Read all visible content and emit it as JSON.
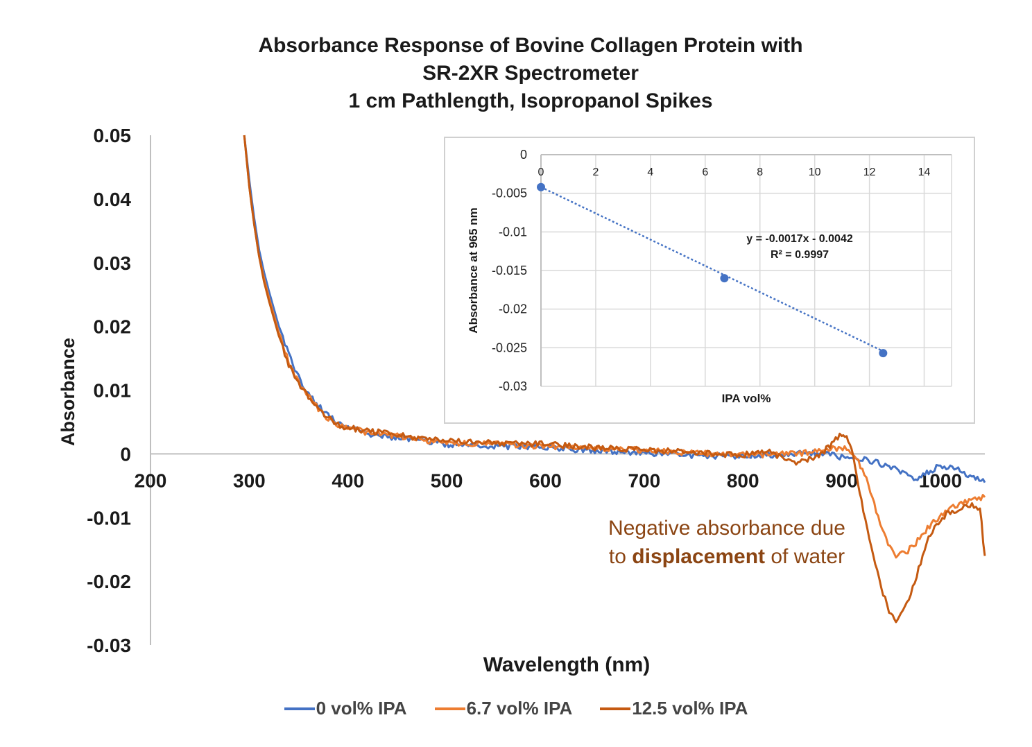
{
  "chart_data": [
    {
      "type": "line",
      "title_lines": [
        "Absorbance Response of Bovine Collagen Protein with",
        "SR-2XR Spectrometer",
        "1 cm Pathlength, Isopropanol Spikes"
      ],
      "xlabel": "Wavelength (nm)",
      "ylabel": "Absorbance",
      "xlim": [
        200,
        1045
      ],
      "ylim": [
        -0.03,
        0.05
      ],
      "xticks": [
        "200",
        "300",
        "400",
        "500",
        "600",
        "700",
        "800",
        "900",
        "1000"
      ],
      "yticks": [
        "0.05",
        "0.04",
        "0.03",
        "0.02",
        "0.01",
        "0",
        "-0.01",
        "-0.02",
        "-0.03"
      ],
      "grid": false,
      "legend_position": "bottom",
      "series": [
        {
          "name": "0 vol% IPA",
          "color": "#4472c4",
          "x": [
            295,
            300,
            305,
            310,
            315,
            320,
            330,
            340,
            350,
            360,
            370,
            380,
            390,
            400,
            425,
            450,
            475,
            500,
            550,
            600,
            650,
            700,
            750,
            800,
            850,
            875,
            900,
            925,
            950,
            975,
            990,
            1000,
            1010,
            1020,
            1030,
            1045
          ],
          "y": [
            0.05,
            0.043,
            0.037,
            0.032,
            0.0285,
            0.0255,
            0.02,
            0.0155,
            0.012,
            0.0095,
            0.0075,
            0.006,
            0.0048,
            0.0042,
            0.003,
            0.0025,
            0.002,
            0.0015,
            0.0012,
            0.001,
            0.0005,
            0.0002,
            -0.0003,
            -0.0004,
            0.0,
            0.0002,
            -0.0005,
            -0.0008,
            -0.0022,
            -0.0038,
            -0.0028,
            -0.0018,
            -0.0022,
            -0.0025,
            -0.0035,
            -0.0045
          ]
        },
        {
          "name": "6.7 vol% IPA",
          "color": "#ed7d31",
          "x": [
            295,
            300,
            305,
            310,
            315,
            320,
            330,
            340,
            350,
            360,
            370,
            380,
            390,
            400,
            425,
            450,
            475,
            500,
            550,
            600,
            650,
            700,
            750,
            800,
            850,
            875,
            895,
            905,
            915,
            925,
            935,
            945,
            955,
            965,
            975,
            985,
            995,
            1005,
            1015,
            1025,
            1035,
            1045
          ],
          "y": [
            0.05,
            0.042,
            0.036,
            0.031,
            0.0275,
            0.0245,
            0.019,
            0.0145,
            0.0112,
            0.009,
            0.007,
            0.0055,
            0.0045,
            0.004,
            0.0032,
            0.0028,
            0.0022,
            0.0018,
            0.0015,
            0.0012,
            0.0009,
            0.0006,
            0.0001,
            -0.0002,
            0.0,
            0.0003,
            0.0009,
            0.001,
            -0.0005,
            -0.004,
            -0.009,
            -0.0135,
            -0.016,
            -0.0155,
            -0.014,
            -0.012,
            -0.0105,
            -0.0092,
            -0.0082,
            -0.0075,
            -0.007,
            -0.0068
          ]
        },
        {
          "name": "12.5 vol% IPA",
          "color": "#c55a11",
          "x": [
            295,
            300,
            305,
            310,
            315,
            320,
            330,
            340,
            350,
            360,
            370,
            380,
            390,
            400,
            425,
            450,
            475,
            500,
            550,
            600,
            650,
            700,
            750,
            800,
            825,
            850,
            875,
            890,
            900,
            905,
            910,
            915,
            920,
            930,
            940,
            950,
            955,
            960,
            970,
            980,
            990,
            1000,
            1010,
            1020,
            1030,
            1040,
            1045
          ],
          "y": [
            0.05,
            0.042,
            0.036,
            0.031,
            0.027,
            0.024,
            0.0185,
            0.014,
            0.011,
            0.0088,
            0.007,
            0.0056,
            0.0046,
            0.0041,
            0.0035,
            0.003,
            0.0024,
            0.0021,
            0.0017,
            0.0015,
            0.001,
            0.0006,
            0.0002,
            -0.0002,
            0.0006,
            -0.0015,
            -0.0005,
            0.0015,
            0.0032,
            0.003,
            0.0005,
            -0.003,
            -0.0075,
            -0.015,
            -0.021,
            -0.0255,
            -0.026,
            -0.025,
            -0.022,
            -0.017,
            -0.0125,
            -0.0102,
            -0.0092,
            -0.0085,
            -0.008,
            -0.0085,
            -0.016
          ]
        }
      ],
      "annotation": {
        "prefix": "Negative absorbance due",
        "line2_pre": "to ",
        "line2_bold": "displacement",
        "line2_post": " of water",
        "color": "#8b4513"
      }
    },
    {
      "type": "scatter",
      "xlabel": "IPA vol%",
      "ylabel": "Absorbance at 965 nm",
      "xlim": [
        0,
        15
      ],
      "ylim": [
        -0.03,
        0
      ],
      "xticks": [
        "0",
        "2",
        "4",
        "6",
        "8",
        "10",
        "12",
        "14"
      ],
      "yticks": [
        "0",
        "-0.005",
        "-0.01",
        "-0.015",
        "-0.02",
        "-0.025",
        "-0.03"
      ],
      "grid": true,
      "points": {
        "x": [
          0,
          6.7,
          12.5
        ],
        "y": [
          -0.0042,
          -0.016,
          -0.0257
        ],
        "color": "#4472c4"
      },
      "trendline": {
        "slope": -0.0017,
        "intercept": -0.0042,
        "equation": "y = -0.0017x - 0.0042",
        "r2": "R² = 0.9997"
      }
    }
  ]
}
